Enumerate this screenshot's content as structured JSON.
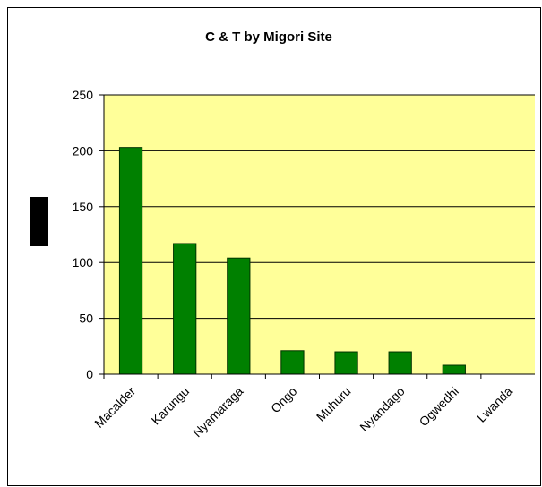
{
  "chart_data": {
    "type": "bar",
    "title": "C & T by Migori Site",
    "categories": [
      "Macalder",
      "Karungu",
      "Nyamaraga",
      "Ongo",
      "Muhuru",
      "Nyandago",
      "Ogwedhi",
      "Lwanda"
    ],
    "values": [
      203,
      117,
      104,
      21,
      20,
      20,
      8,
      0
    ],
    "color": "#008000",
    "plot_background": "#ffff99",
    "ylim": [
      0,
      250
    ],
    "yticks": [
      0,
      50,
      100,
      150,
      200,
      250
    ],
    "grid": true
  }
}
